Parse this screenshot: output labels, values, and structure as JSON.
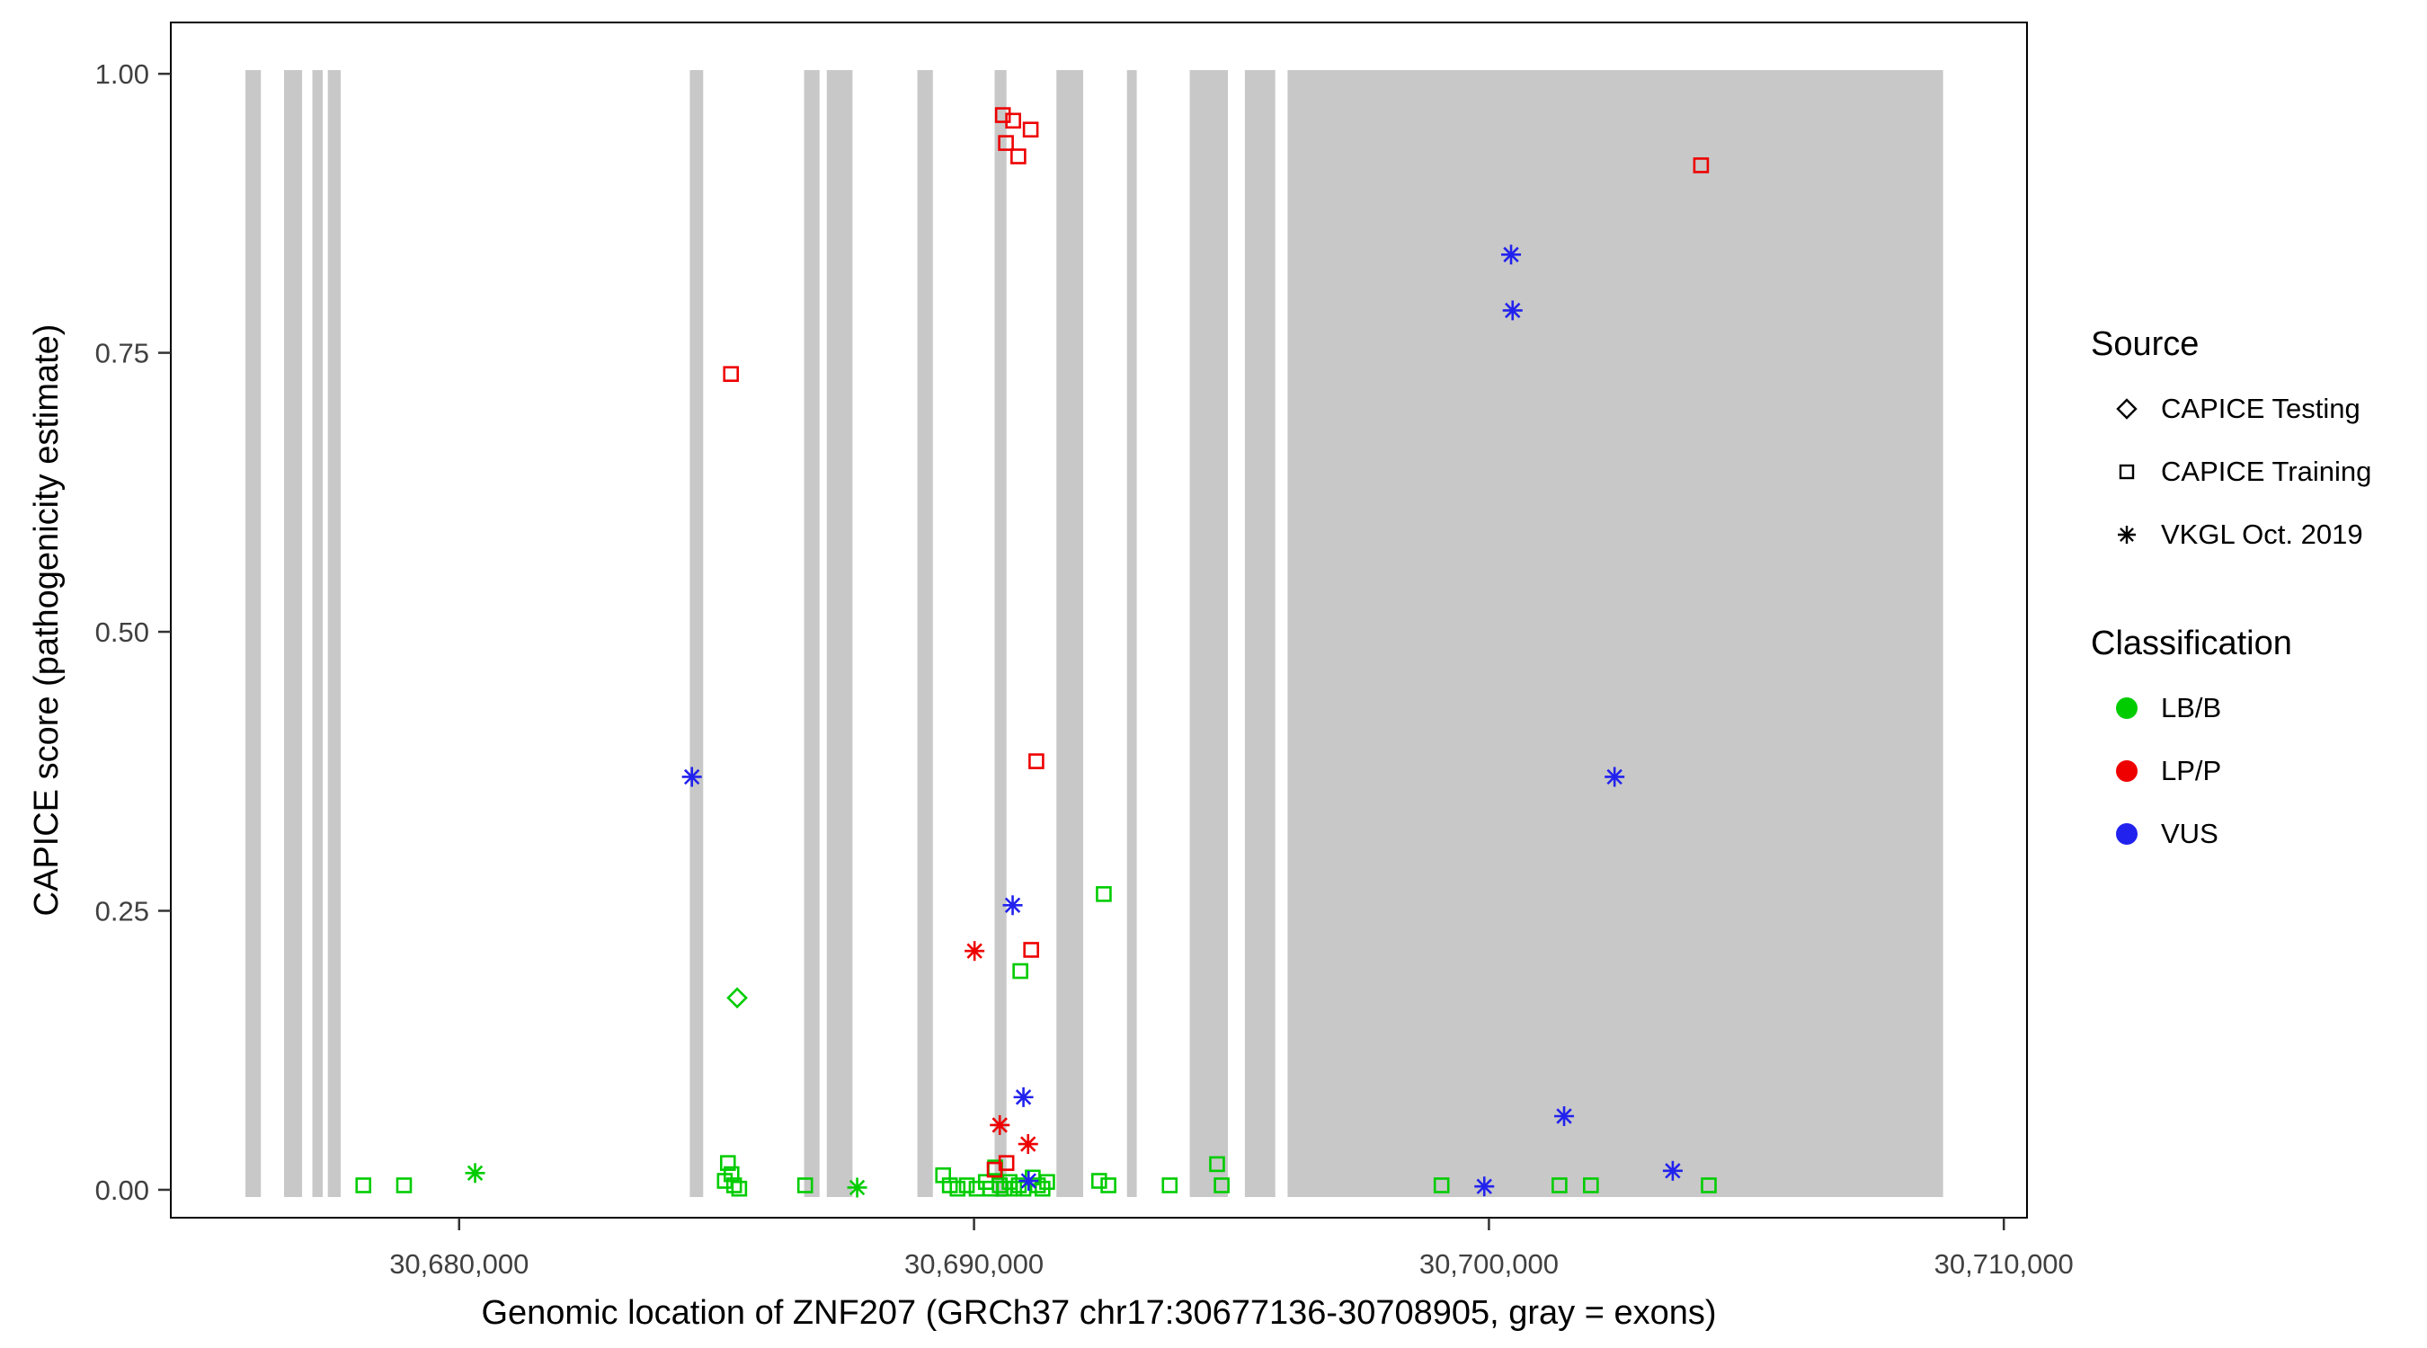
{
  "figure": {
    "background": "#FFFFFF",
    "panel_border_color": "#000000"
  },
  "legend": {
    "source": {
      "title": "Source",
      "items": [
        {
          "label": "CAPICE Testing",
          "shape": "diamond"
        },
        {
          "label": "CAPICE Training",
          "shape": "square"
        },
        {
          "label": "VKGL Oct. 2019",
          "shape": "asterisk"
        }
      ]
    },
    "classification": {
      "title": "Classification",
      "items": [
        {
          "label": "LB/B",
          "color": "#00CC00"
        },
        {
          "label": "LP/P",
          "color": "#EE0000"
        },
        {
          "label": "VUS",
          "color": "#2222EE"
        }
      ]
    }
  },
  "chart_data": {
    "type": "scatter",
    "title": "",
    "xlabel": "Genomic location of ZNF207 (GRCh37 chr17:30677136-30708905, gray = exons)",
    "ylabel": "CAPICE score (pathogenicity estimate)",
    "xlim": [
      30674400,
      30710450
    ],
    "ylim": [
      -0.025,
      1.046
    ],
    "grid": false,
    "legend_position": "right",
    "x_ticks": [
      {
        "v": 30680000,
        "label": "30,680,000"
      },
      {
        "v": 30690000,
        "label": "30,690,000"
      },
      {
        "v": 30700000,
        "label": "30,700,000"
      },
      {
        "v": 30710000,
        "label": "30,710,000"
      }
    ],
    "y_ticks": [
      {
        "v": 0.0,
        "label": "0.00"
      },
      {
        "v": 0.25,
        "label": "0.25"
      },
      {
        "v": 0.5,
        "label": "0.50"
      },
      {
        "v": 0.75,
        "label": "0.75"
      },
      {
        "v": 1.0,
        "label": "1.00"
      }
    ],
    "exon_color": "#C8C8C8",
    "exons": [
      [
        30675850,
        30676150
      ],
      [
        30676600,
        30676950
      ],
      [
        30677150,
        30677350
      ],
      [
        30677450,
        30677700
      ],
      [
        30684480,
        30684740
      ],
      [
        30686700,
        30687000
      ],
      [
        30687140,
        30687640
      ],
      [
        30688900,
        30689200
      ],
      [
        30690400,
        30690630
      ],
      [
        30691600,
        30692120
      ],
      [
        30692970,
        30693160
      ],
      [
        30694190,
        30694930
      ],
      [
        30695260,
        30695850
      ],
      [
        30696090,
        30708820
      ]
    ],
    "shape_source_map": {
      "diamond": "CAPICE Testing",
      "square": "CAPICE Training",
      "asterisk": "VKGL Oct. 2019"
    },
    "series": [
      {
        "name": "LB/B",
        "color": "#00CC00",
        "points": [
          [
            30685400,
            0.172,
            "diamond"
          ],
          [
            30692520,
            0.265,
            "square"
          ],
          [
            30690900,
            0.196,
            "square"
          ],
          [
            30680310,
            0.015,
            "asterisk"
          ],
          [
            30687730,
            0.002,
            "asterisk"
          ],
          [
            30678140,
            0.004,
            "square"
          ],
          [
            30678930,
            0.004,
            "square"
          ],
          [
            30685220,
            0.024,
            "square"
          ],
          [
            30685290,
            0.014,
            "square"
          ],
          [
            30685160,
            0.008,
            "square"
          ],
          [
            30685340,
            0.004,
            "square"
          ],
          [
            30685440,
            0.001,
            "square"
          ],
          [
            30686720,
            0.004,
            "square"
          ],
          [
            30689400,
            0.013,
            "square"
          ],
          [
            30689530,
            0.004,
            "square"
          ],
          [
            30689680,
            0.001,
            "square"
          ],
          [
            30689860,
            0.004,
            "square"
          ],
          [
            30690050,
            0.001,
            "square"
          ],
          [
            30690230,
            0.007,
            "square"
          ],
          [
            30690320,
            0.001,
            "square"
          ],
          [
            30690410,
            0.02,
            "square"
          ],
          [
            30690500,
            0.004,
            "square"
          ],
          [
            30690590,
            0.001,
            "square"
          ],
          [
            30690690,
            0.007,
            "square"
          ],
          [
            30690780,
            0.001,
            "square"
          ],
          [
            30690870,
            0.004,
            "square"
          ],
          [
            30690960,
            0.001,
            "square"
          ],
          [
            30691140,
            0.011,
            "square"
          ],
          [
            30691240,
            0.004,
            "square"
          ],
          [
            30691330,
            0.001,
            "square"
          ],
          [
            30691420,
            0.007,
            "square"
          ],
          [
            30692430,
            0.008,
            "square"
          ],
          [
            30692610,
            0.004,
            "square"
          ],
          [
            30693800,
            0.004,
            "square"
          ],
          [
            30694720,
            0.023,
            "square"
          ],
          [
            30694810,
            0.004,
            "square"
          ],
          [
            30699080,
            0.004,
            "square"
          ],
          [
            30701370,
            0.004,
            "square"
          ],
          [
            30701980,
            0.004,
            "square"
          ],
          [
            30704270,
            0.004,
            "square"
          ]
        ]
      },
      {
        "name": "LP/P",
        "color": "#EE0000",
        "points": [
          [
            30690560,
            0.963,
            "square"
          ],
          [
            30690760,
            0.958,
            "square"
          ],
          [
            30691100,
            0.95,
            "square"
          ],
          [
            30690620,
            0.938,
            "square"
          ],
          [
            30690860,
            0.926,
            "square"
          ],
          [
            30704120,
            0.918,
            "square"
          ],
          [
            30685280,
            0.731,
            "square"
          ],
          [
            30691210,
            0.384,
            "square"
          ],
          [
            30691110,
            0.215,
            "square"
          ],
          [
            30690630,
            0.024,
            "square"
          ],
          [
            30690400,
            0.018,
            "square"
          ],
          [
            30690010,
            0.214,
            "asterisk"
          ],
          [
            30690500,
            0.058,
            "asterisk"
          ],
          [
            30691050,
            0.041,
            "asterisk"
          ]
        ]
      },
      {
        "name": "VUS",
        "color": "#2222EE",
        "points": [
          [
            30684520,
            0.37,
            "asterisk"
          ],
          [
            30700430,
            0.838,
            "asterisk"
          ],
          [
            30700460,
            0.788,
            "asterisk"
          ],
          [
            30702440,
            0.37,
            "asterisk"
          ],
          [
            30690750,
            0.255,
            "asterisk"
          ],
          [
            30690960,
            0.083,
            "asterisk"
          ],
          [
            30701460,
            0.066,
            "asterisk"
          ],
          [
            30703570,
            0.017,
            "asterisk"
          ],
          [
            30691060,
            0.008,
            "asterisk"
          ],
          [
            30699910,
            0.003,
            "asterisk"
          ]
        ]
      }
    ]
  }
}
